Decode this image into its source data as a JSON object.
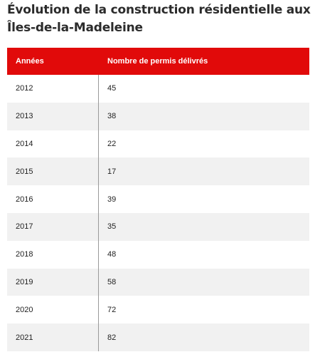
{
  "title": "Évolution de la construction résidentielle aux Îles-de-la-Madeleine",
  "table": {
    "headers": [
      "Années",
      "Nombre de permis délivrés"
    ],
    "rows": [
      [
        "2012",
        "45"
      ],
      [
        "2013",
        "38"
      ],
      [
        "2014",
        "22"
      ],
      [
        "2015",
        "17"
      ],
      [
        "2016",
        "39"
      ],
      [
        "2017",
        "35"
      ],
      [
        "2018",
        "48"
      ],
      [
        "2019",
        "58"
      ],
      [
        "2020",
        "72"
      ],
      [
        "2021",
        "82"
      ]
    ]
  },
  "colors": {
    "header_bg": "#e10a0a",
    "header_text": "#ffffff",
    "alt_row_bg": "#f1f1f1"
  }
}
